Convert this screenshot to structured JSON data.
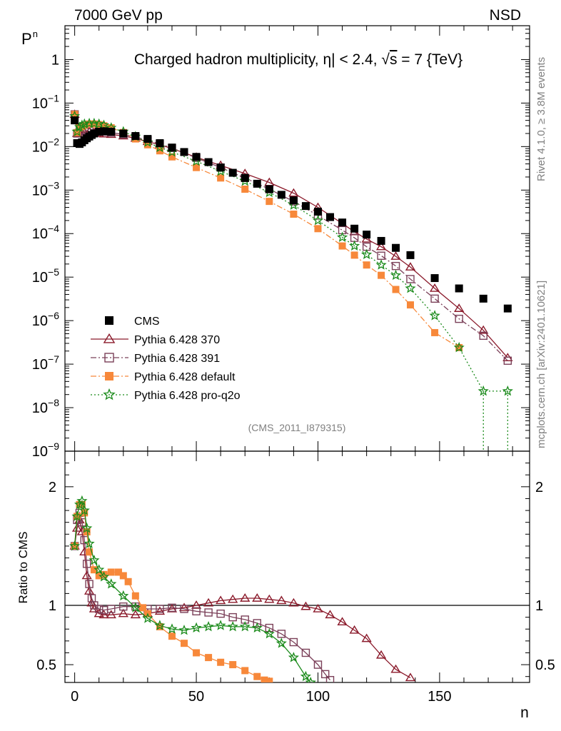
{
  "header": {
    "left": "7000 GeV pp",
    "right": "NSD"
  },
  "plot": {
    "title_prefix": "Charged hadron multiplicity, ",
    "title_eta": "η",
    "title_mid": "| < 2.4, ",
    "title_sqrt": "√",
    "title_s": "s",
    "title_suffix": " = 7 {TeV}",
    "analysis_id": "(CMS_2011_I879315)",
    "side_text_top": "Rivet 4.1.0, ≥ 3.8M events",
    "side_text_bottom": "mcplots.cern.ch [arXiv:2401.10621]"
  },
  "chart_data": [
    {
      "type": "scatter",
      "title": "Charged hadron multiplicity, |η| < 2.4, √s = 7 {TeV}",
      "xlabel": "n",
      "ylabel": "P_n",
      "yscale": "log",
      "xlim": [
        -4,
        187
      ],
      "ylim": [
        1e-09,
        6
      ],
      "y_tick_labels": [
        {
          "v": 1,
          "base": "1",
          "exp": ""
        },
        {
          "v": 0.1,
          "base": "10",
          "exp": "−1"
        },
        {
          "v": 0.01,
          "base": "10",
          "exp": "−2"
        },
        {
          "v": 0.001,
          "base": "10",
          "exp": "−3"
        },
        {
          "v": 0.0001,
          "base": "10",
          "exp": "−4"
        },
        {
          "v": 1e-05,
          "base": "10",
          "exp": "−5"
        },
        {
          "v": 1e-06,
          "base": "10",
          "exp": "−6"
        },
        {
          "v": 1e-07,
          "base": "10",
          "exp": "−7"
        },
        {
          "v": 1e-08,
          "base": "10",
          "exp": "−8"
        },
        {
          "v": 1e-09,
          "base": "10",
          "exp": "−9"
        }
      ],
      "legend": [
        "CMS",
        "Pythia 6.428 370",
        "Pythia 6.428 391",
        "Pythia 6.428 default",
        "Pythia 6.428 pro-q2o"
      ],
      "series": [
        {
          "name": "CMS",
          "color": "#000000",
          "marker": "square",
          "x": [
            0,
            1,
            2,
            3,
            4,
            5,
            6,
            7,
            8,
            10,
            12,
            15,
            20,
            25,
            30,
            35,
            40,
            45,
            50,
            55,
            60,
            65,
            70,
            75,
            80,
            85,
            90,
            95,
            100,
            105,
            110,
            115,
            120,
            126,
            132,
            138,
            148,
            158,
            168,
            178
          ],
          "y": [
            0.04,
            0.012,
            0.0115,
            0.0125,
            0.014,
            0.0155,
            0.017,
            0.0185,
            0.02,
            0.022,
            0.0225,
            0.022,
            0.02,
            0.0175,
            0.015,
            0.012,
            0.0095,
            0.0075,
            0.0058,
            0.0044,
            0.0033,
            0.0025,
            0.0019,
            0.0014,
            0.00105,
            0.00078,
            0.00058,
            0.00043,
            0.00032,
            0.00024,
            0.00018,
            0.00013,
            9.5e-05,
            6.8e-05,
            4.7e-05,
            3.2e-05,
            9.5e-06,
            5.5e-06,
            3.2e-06,
            1.9e-06
          ]
        },
        {
          "name": "Pythia 6.428 370",
          "color": "#8b1a2b",
          "marker": "triangle-open",
          "dash": "",
          "x": [
            0,
            1,
            2,
            3,
            4,
            6,
            8,
            10,
            12,
            15,
            20,
            25,
            30,
            35,
            40,
            50,
            60,
            70,
            80,
            90,
            100,
            110,
            115,
            120,
            126,
            132,
            138,
            148,
            158,
            168,
            178
          ],
          "y": [
            0.055,
            0.02,
            0.021,
            0.021,
            0.022,
            0.022,
            0.021,
            0.02,
            0.0195,
            0.019,
            0.0175,
            0.0155,
            0.013,
            0.011,
            0.009,
            0.0057,
            0.0037,
            0.0024,
            0.0015,
            0.00085,
            0.0004,
            0.00017,
            0.00011,
            7.5e-05,
            5e-05,
            3e-05,
            1.7e-05,
            5.5e-06,
            1.9e-06,
            6e-07,
            1.4e-07
          ]
        },
        {
          "name": "Pythia 6.428 391",
          "color": "#7b4059",
          "marker": "square-open",
          "dash": "8,3,2,3",
          "x": [
            0,
            1,
            2,
            3,
            4,
            6,
            8,
            10,
            12,
            15,
            20,
            25,
            30,
            35,
            40,
            50,
            60,
            70,
            80,
            90,
            100,
            110,
            115,
            120,
            126,
            132,
            138,
            148,
            158,
            168,
            178
          ],
          "y": [
            0.055,
            0.02,
            0.022,
            0.023,
            0.024,
            0.025,
            0.024,
            0.023,
            0.022,
            0.021,
            0.019,
            0.0165,
            0.014,
            0.0115,
            0.0093,
            0.0055,
            0.0033,
            0.0019,
            0.00105,
            0.00055,
            0.00026,
            0.00012,
            8e-05,
            5e-05,
            3.1e-05,
            1.8e-05,
            9e-06,
            3.2e-06,
            1.1e-06,
            4.5e-07,
            1.2e-07
          ]
        },
        {
          "name": "Pythia 6.428 default",
          "color": "#f7883a",
          "marker": "square",
          "dash": "8,3,2,3",
          "x": [
            0,
            1,
            2,
            3,
            4,
            6,
            8,
            10,
            12,
            15,
            20,
            25,
            30,
            35,
            40,
            50,
            60,
            70,
            80,
            90,
            100,
            110,
            115,
            120,
            126,
            132,
            138,
            148,
            158
          ],
          "y": [
            0.055,
            0.021,
            0.027,
            0.029,
            0.031,
            0.033,
            0.033,
            0.032,
            0.03,
            0.027,
            0.021,
            0.015,
            0.011,
            0.008,
            0.0058,
            0.0033,
            0.0019,
            0.00105,
            0.00055,
            0.00028,
            0.00013,
            5.2e-05,
            3.2e-05,
            1.9e-05,
            1.1e-05,
            5.2e-06,
            2.3e-06,
            5.3e-07,
            2.4e-07
          ]
        },
        {
          "name": "Pythia 6.428 pro-q2o",
          "color": "#1a8a1a",
          "marker": "star",
          "dash": "2,3",
          "x": [
            0,
            1,
            2,
            3,
            4,
            6,
            8,
            10,
            12,
            15,
            20,
            25,
            30,
            35,
            40,
            50,
            60,
            70,
            80,
            90,
            100,
            110,
            115,
            120,
            126,
            132,
            138,
            148,
            158,
            168,
            178
          ],
          "y": [
            0.05,
            0.022,
            0.028,
            0.031,
            0.033,
            0.034,
            0.034,
            0.033,
            0.031,
            0.027,
            0.022,
            0.017,
            0.0125,
            0.0095,
            0.0075,
            0.0046,
            0.0027,
            0.0016,
            0.00088,
            0.00045,
            0.0002,
            8.2e-05,
            5.2e-05,
            3.3e-05,
            1.9e-05,
            1.1e-05,
            5.5e-06,
            1.3e-06,
            2.4e-07,
            2.4e-08,
            2.4e-08
          ]
        }
      ]
    },
    {
      "type": "line",
      "xlabel": "n",
      "ylabel": "Ratio to CMS",
      "ylim": [
        0.35,
        2.3
      ],
      "xlim": [
        -4,
        187
      ],
      "x_ticks": [
        0,
        50,
        100,
        150
      ],
      "x_tick_labels": [
        "0",
        "50",
        "100",
        "150"
      ],
      "y_ticks": [
        0.5,
        1,
        2
      ],
      "y_tick_labels": [
        "0.5",
        "1",
        "2"
      ],
      "reference_line": 1,
      "series": [
        {
          "name": "Pythia 6.428 370",
          "color": "#8b1a2b",
          "marker": "triangle-open",
          "x": [
            0,
            1,
            2,
            3,
            4,
            5,
            6,
            7,
            8,
            10,
            12,
            15,
            20,
            25,
            30,
            35,
            40,
            45,
            50,
            55,
            60,
            65,
            70,
            75,
            80,
            85,
            90,
            95,
            100,
            105,
            110,
            115,
            120,
            126,
            132,
            138
          ],
          "y": [
            1.5,
            1.65,
            1.72,
            1.62,
            1.45,
            1.25,
            1.12,
            1.02,
            0.97,
            0.93,
            0.92,
            0.92,
            0.93,
            0.92,
            0.93,
            0.95,
            0.97,
            0.98,
            1.0,
            1.02,
            1.04,
            1.05,
            1.06,
            1.06,
            1.05,
            1.04,
            1.02,
            0.99,
            0.97,
            0.92,
            0.86,
            0.79,
            0.72,
            0.58,
            0.46,
            0.39
          ]
        },
        {
          "name": "Pythia 6.428 391",
          "color": "#7b4059",
          "marker": "square-open",
          "x": [
            0,
            1,
            2,
            3,
            4,
            5,
            6,
            7,
            8,
            10,
            12,
            15,
            20,
            25,
            30,
            35,
            40,
            45,
            50,
            55,
            60,
            65,
            70,
            75,
            80,
            85,
            90,
            95,
            100,
            103,
            105
          ],
          "y": [
            1.5,
            1.72,
            1.78,
            1.7,
            1.55,
            1.35,
            1.18,
            1.06,
            1.0,
            0.97,
            0.96,
            0.97,
            0.99,
            0.99,
            0.97,
            0.97,
            0.98,
            0.97,
            0.95,
            0.94,
            0.93,
            0.9,
            0.88,
            0.85,
            0.81,
            0.76,
            0.69,
            0.6,
            0.5,
            0.42,
            0.37
          ]
        },
        {
          "name": "Pythia 6.428 default",
          "color": "#f7883a",
          "marker": "square",
          "x": [
            0,
            1,
            2,
            3,
            4,
            5,
            6,
            8,
            10,
            12,
            15,
            18,
            20,
            22,
            25,
            28,
            30,
            35,
            40,
            45,
            50,
            55,
            60,
            65,
            70,
            75,
            78,
            80
          ],
          "y": [
            1.5,
            1.75,
            1.85,
            1.85,
            1.78,
            1.62,
            1.45,
            1.3,
            1.25,
            1.26,
            1.28,
            1.28,
            1.25,
            1.2,
            1.08,
            0.98,
            0.93,
            0.82,
            0.74,
            0.68,
            0.6,
            0.56,
            0.52,
            0.5,
            0.45,
            0.4,
            0.37,
            0.36
          ]
        },
        {
          "name": "Pythia 6.428 pro-q2o",
          "color": "#1a8a1a",
          "marker": "star",
          "x": [
            0,
            1,
            2,
            3,
            4,
            5,
            6,
            8,
            10,
            12,
            15,
            20,
            25,
            30,
            35,
            40,
            45,
            50,
            55,
            60,
            65,
            70,
            75,
            80,
            85,
            90,
            95,
            97
          ],
          "y": [
            1.5,
            1.75,
            1.85,
            1.88,
            1.8,
            1.65,
            1.52,
            1.38,
            1.3,
            1.24,
            1.18,
            1.08,
            0.98,
            0.89,
            0.83,
            0.8,
            0.79,
            0.81,
            0.82,
            0.83,
            0.82,
            0.82,
            0.81,
            0.76,
            0.68,
            0.56,
            0.4,
            0.35
          ]
        }
      ]
    }
  ]
}
